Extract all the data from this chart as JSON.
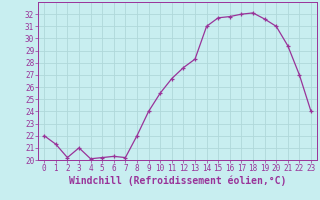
{
  "x": [
    0,
    1,
    2,
    3,
    4,
    5,
    6,
    7,
    8,
    9,
    10,
    11,
    12,
    13,
    14,
    15,
    16,
    17,
    18,
    19,
    20,
    21,
    22,
    23
  ],
  "y": [
    22.0,
    21.3,
    20.2,
    21.0,
    20.1,
    20.2,
    20.3,
    20.2,
    22.0,
    24.0,
    25.5,
    26.7,
    27.6,
    28.3,
    31.0,
    31.7,
    31.8,
    32.0,
    32.1,
    31.6,
    31.0,
    29.4,
    27.0,
    24.0
  ],
  "line_color": "#993399",
  "marker": "+",
  "bg_color": "#c8eef0",
  "grid_color": "#b0d8da",
  "xlabel": "Windchill (Refroidissement éolien,°C)",
  "ylim": [
    20,
    33
  ],
  "xlim": [
    -0.5,
    23.5
  ],
  "yticks": [
    20,
    21,
    22,
    23,
    24,
    25,
    26,
    27,
    28,
    29,
    30,
    31,
    32
  ],
  "xticks": [
    0,
    1,
    2,
    3,
    4,
    5,
    6,
    7,
    8,
    9,
    10,
    11,
    12,
    13,
    14,
    15,
    16,
    17,
    18,
    19,
    20,
    21,
    22,
    23
  ],
  "xlabel_color": "#993399",
  "tick_color": "#993399",
  "tick_fontsize": 5.5,
  "xlabel_fontsize": 7.0,
  "spine_color": "#993399"
}
